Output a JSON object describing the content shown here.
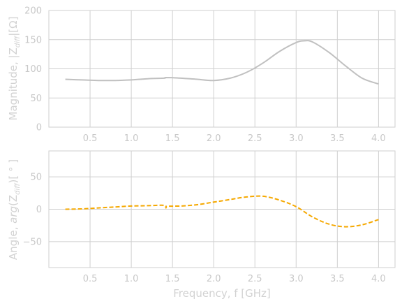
{
  "chart_data": [
    {
      "type": "line",
      "ylabel": "Magnitude, |Z_diff|[Ω]",
      "ylabel_parts": [
        "Magnitude, |Z",
        "diff",
        "|[Ω]"
      ],
      "xlim": [
        0.0,
        4.2
      ],
      "ylim": [
        0,
        200
      ],
      "xticks": [
        "0.5",
        "1.0",
        "1.5",
        "2.0",
        "2.5",
        "3.0",
        "3.5",
        "4.0"
      ],
      "yticks": [
        "0",
        "50",
        "100",
        "150",
        "200"
      ],
      "grid": true,
      "series": [
        {
          "color": "#c0c0c0",
          "style": "solid",
          "x": [
            0.2,
            0.4,
            0.6,
            0.8,
            1.0,
            1.2,
            1.4,
            1.42,
            1.6,
            1.8,
            2.0,
            2.2,
            2.4,
            2.6,
            2.8,
            3.0,
            3.1,
            3.2,
            3.4,
            3.6,
            3.8,
            4.0
          ],
          "y": [
            82,
            81,
            80,
            80,
            81,
            83,
            84,
            85,
            84,
            82,
            80,
            84,
            94,
            110,
            130,
            145,
            148,
            146,
            128,
            105,
            84,
            74
          ]
        }
      ]
    },
    {
      "type": "line",
      "ylabel": "Angle, arg(Z_diff)[ ° ]",
      "ylabel_parts": [
        "Angle, ",
        "arg",
        "(Z",
        "diff",
        ")[ ° ]"
      ],
      "xlabel": "Frequency, f [GHz]",
      "xlim": [
        0.0,
        4.2
      ],
      "ylim": [
        -90,
        90
      ],
      "xticks": [
        "0.5",
        "1.0",
        "1.5",
        "2.0",
        "2.5",
        "3.0",
        "3.5",
        "4.0"
      ],
      "yticks": [
        "−50",
        "0",
        "50"
      ],
      "grid": true,
      "series": [
        {
          "color": "#f5a800",
          "style": "dashed",
          "x": [
            0.2,
            0.4,
            0.6,
            0.8,
            1.0,
            1.2,
            1.4,
            1.42,
            1.44,
            1.6,
            1.8,
            2.0,
            2.2,
            2.4,
            2.6,
            2.8,
            3.0,
            3.2,
            3.4,
            3.6,
            3.8,
            4.0
          ],
          "y": [
            0,
            0.5,
            2,
            3.5,
            5,
            5.5,
            6,
            2,
            4.5,
            5,
            7,
            11,
            15,
            19,
            20,
            14,
            4,
            -12,
            -23,
            -27,
            -24,
            -16
          ]
        }
      ]
    }
  ]
}
